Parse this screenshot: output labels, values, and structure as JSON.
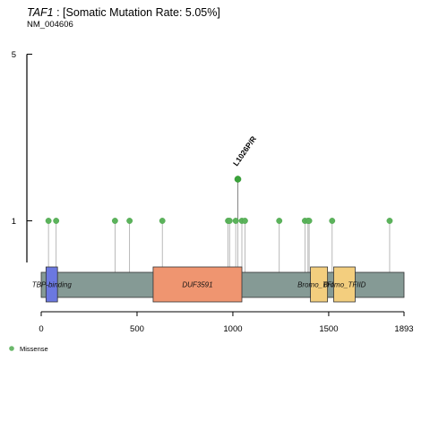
{
  "chart_data": {
    "type": "lollipop",
    "gene": "TAF1",
    "title_rest": " : [Somatic Mutation Rate: 5.05%]",
    "subtitle": "NM_004606",
    "protein_length": 1893,
    "x_ticks": [
      0,
      500,
      1000,
      1500,
      1893
    ],
    "y_ticks": [
      1,
      5
    ],
    "ylim": [
      0,
      5
    ],
    "backbone_color": "#859a95",
    "domains": [
      {
        "name": "TBP-binding",
        "start": 25,
        "end": 85,
        "color": "#6b78e0"
      },
      {
        "name": "DUF3591",
        "start": 584,
        "end": 1047,
        "color": "#ef9570"
      },
      {
        "name": "Bromo_TFIID",
        "start": 1405,
        "end": 1494,
        "color": "#f3ce7e"
      },
      {
        "name": "Bromo_TFIID",
        "start": 1526,
        "end": 1638,
        "color": "#f3ce7e"
      }
    ],
    "mutations": [
      {
        "pos": 38,
        "count": 1
      },
      {
        "pos": 78,
        "count": 1
      },
      {
        "pos": 385,
        "count": 1
      },
      {
        "pos": 461,
        "count": 1
      },
      {
        "pos": 632,
        "count": 1
      },
      {
        "pos": 975,
        "count": 1
      },
      {
        "pos": 983,
        "count": 1
      },
      {
        "pos": 1015,
        "count": 1
      },
      {
        "pos": 1026,
        "count": 2,
        "label": "L1026P/R"
      },
      {
        "pos": 1047,
        "count": 1
      },
      {
        "pos": 1063,
        "count": 1
      },
      {
        "pos": 1242,
        "count": 1
      },
      {
        "pos": 1376,
        "count": 1
      },
      {
        "pos": 1392,
        "count": 1
      },
      {
        "pos": 1398,
        "count": 1
      },
      {
        "pos": 1518,
        "count": 1
      },
      {
        "pos": 1818,
        "count": 1
      }
    ],
    "mutation_color": "#3aa33a",
    "legend": [
      {
        "label": "Missense",
        "color": "#6bb86b"
      }
    ]
  }
}
